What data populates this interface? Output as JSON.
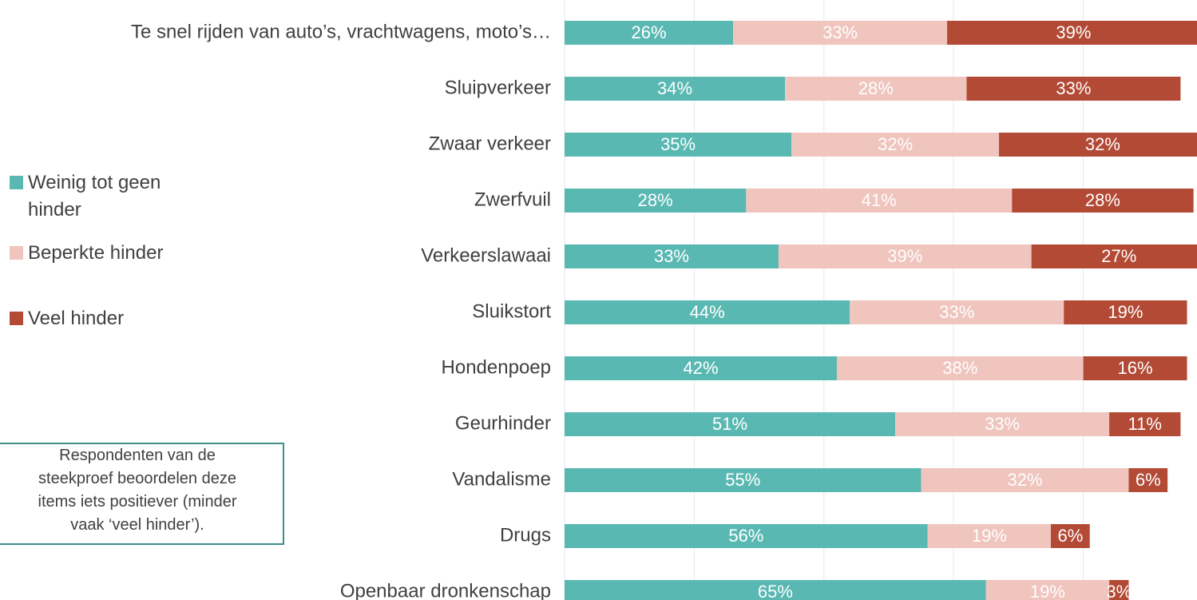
{
  "chart_data": {
    "type": "stacked-bar-horizontal",
    "categories": [
      "Te snel rijden van auto’s, vrachtwagens, moto’s…",
      "Sluipverkeer",
      "Zwaar verkeer",
      "Zwerfvuil",
      "Verkeerslawaai",
      "Sluikstort",
      "Hondenpoep",
      "Geurhinder",
      "Vandalisme",
      "Drugs",
      "Openbaar dronkenschap"
    ],
    "series": [
      {
        "name": "Weinig tot geen hinder",
        "color": "#5ab8b3",
        "values": [
          26,
          34,
          35,
          28,
          33,
          44,
          42,
          51,
          55,
          56,
          65
        ],
        "value_labels": [
          "26%",
          "34%",
          "35%",
          "28%",
          "33%",
          "44%",
          "42%",
          "51%",
          "55%",
          "56%",
          "65%"
        ]
      },
      {
        "name": "Beperkte hinder",
        "color": "#efc5be",
        "values": [
          33,
          28,
          32,
          41,
          39,
          33,
          38,
          33,
          32,
          19,
          19
        ],
        "value_labels": [
          "33%",
          "28%",
          "32%",
          "41%",
          "39%",
          "33%",
          "38%",
          "33%",
          "32%",
          "19%",
          "19%"
        ]
      },
      {
        "name": "Veel hinder",
        "color": "#b34a36",
        "values": [
          39,
          33,
          32,
          28,
          27,
          19,
          16,
          11,
          6,
          6,
          3
        ],
        "value_labels": [
          "39%",
          "33%",
          "32%",
          "28%",
          "27%",
          "19%",
          "16%",
          "11%",
          "6%",
          "6%",
          "3%"
        ]
      }
    ],
    "xlim": [
      0,
      100
    ],
    "xticks": [
      0,
      20,
      40,
      60,
      80,
      100
    ],
    "grid": true,
    "annotation": [
      "Respondenten van de",
      "steekproef beoordelen deze",
      "items iets positiever (minder",
      "vaak ‘veel hinder’)."
    ]
  }
}
